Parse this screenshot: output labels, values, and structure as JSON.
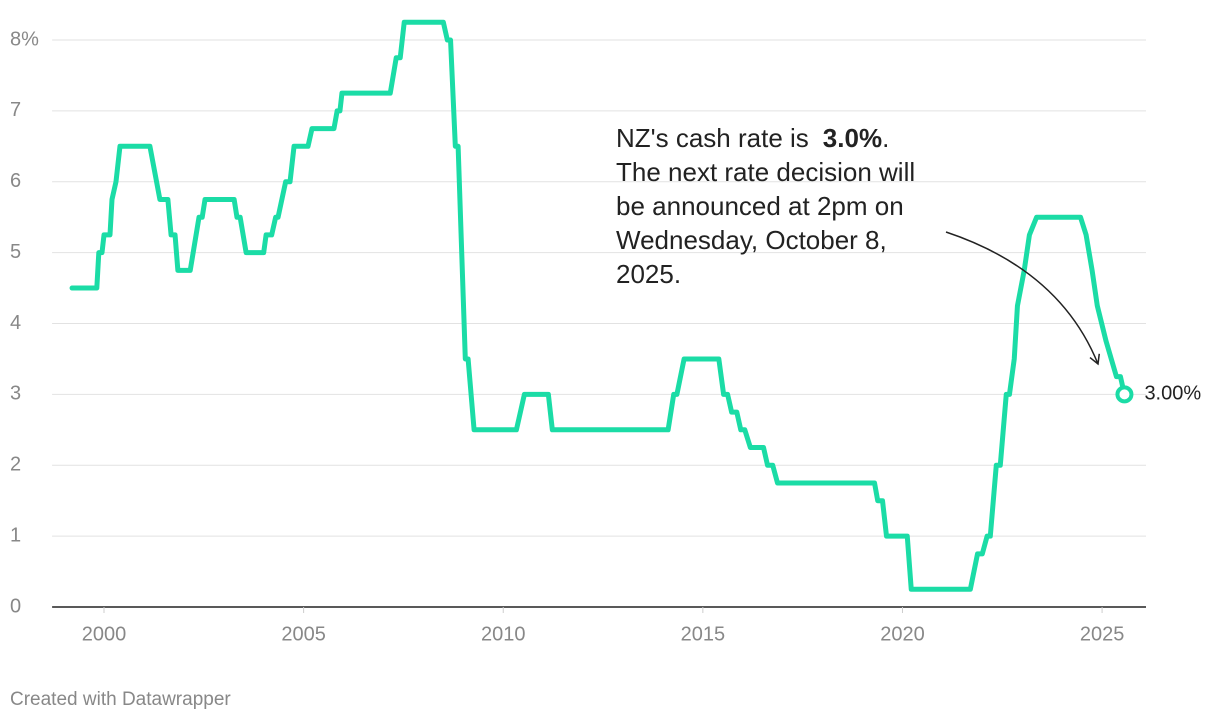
{
  "chart_data": {
    "type": "line",
    "x": [
      1999.2,
      1999.82,
      1999.87,
      1999.95,
      2000.0,
      2000.15,
      2000.2,
      2000.3,
      2000.4,
      2001.15,
      2001.4,
      2001.6,
      2001.68,
      2001.78,
      2001.85,
      2002.16,
      2002.38,
      2002.46,
      2002.53,
      2003.26,
      2003.33,
      2003.41,
      2003.56,
      2004.0,
      2004.06,
      2004.2,
      2004.3,
      2004.36,
      2004.55,
      2004.66,
      2004.76,
      2005.11,
      2005.21,
      2005.76,
      2005.84,
      2005.91,
      2005.96,
      2007.17,
      2007.32,
      2007.42,
      2007.52,
      2008.5,
      2008.6,
      2008.68,
      2008.8,
      2008.87,
      2009.05,
      2009.12,
      2009.27,
      2010.33,
      2010.53,
      2011.13,
      2011.23,
      2014.13,
      2014.27,
      2014.35,
      2014.53,
      2015.4,
      2015.52,
      2015.62,
      2015.72,
      2015.85,
      2015.95,
      2016.05,
      2016.19,
      2016.52,
      2016.62,
      2016.75,
      2016.87,
      2019.3,
      2019.38,
      2019.5,
      2019.6,
      2020.12,
      2020.22,
      2021.7,
      2021.88,
      2022.0,
      2022.12,
      2022.2,
      2022.35,
      2022.45,
      2022.6,
      2022.68,
      2022.8,
      2022.88,
      2023.05,
      2023.18,
      2023.36,
      2024.46,
      2024.6,
      2024.75,
      2024.88,
      2025.1,
      2025.36,
      2025.46,
      2025.56
    ],
    "values": [
      4.5,
      4.5,
      5.0,
      5.0,
      5.25,
      5.25,
      5.75,
      6.0,
      6.5,
      6.5,
      5.75,
      5.75,
      5.25,
      5.25,
      4.75,
      4.75,
      5.5,
      5.5,
      5.75,
      5.75,
      5.5,
      5.5,
      5.0,
      5.0,
      5.25,
      5.25,
      5.5,
      5.5,
      6.0,
      6.0,
      6.5,
      6.5,
      6.75,
      6.75,
      7.0,
      7.0,
      7.25,
      7.25,
      7.75,
      7.75,
      8.25,
      8.25,
      8.0,
      8.0,
      6.5,
      6.5,
      3.5,
      3.5,
      2.5,
      2.5,
      3.0,
      3.0,
      2.5,
      2.5,
      3.0,
      3.0,
      3.5,
      3.5,
      3.0,
      3.0,
      2.75,
      2.75,
      2.5,
      2.5,
      2.25,
      2.25,
      2.0,
      2.0,
      1.75,
      1.75,
      1.5,
      1.5,
      1.0,
      1.0,
      0.25,
      0.25,
      0.75,
      0.75,
      1.0,
      1.0,
      2.0,
      2.0,
      3.0,
      3.0,
      3.5,
      4.25,
      4.75,
      5.25,
      5.5,
      5.5,
      5.25,
      4.75,
      4.25,
      3.75,
      3.25,
      3.25,
      3.0
    ],
    "color": "#1bdca6",
    "end_point": {
      "x": 2025.56,
      "value": 3,
      "label": "3.00%"
    },
    "xlim": [
      1998.7,
      2026.1
    ],
    "xticks": [
      2000,
      2005,
      2010,
      2015,
      2020,
      2025
    ],
    "ylim": [
      0,
      8
    ],
    "yticks": [
      0,
      1,
      2,
      3,
      4,
      5,
      6,
      7,
      {
        "value": 8,
        "label": "8%"
      }
    ],
    "grid": true,
    "annotation": {
      "lead": "NZ's cash rate is",
      "highlight": "3.0%",
      "tail": ".",
      "lines": [
        "The next rate decision will",
        "be announced at 2pm on",
        "Wednesday, October 8,",
        "2025."
      ]
    },
    "credit": "Created with Datawrapper"
  }
}
